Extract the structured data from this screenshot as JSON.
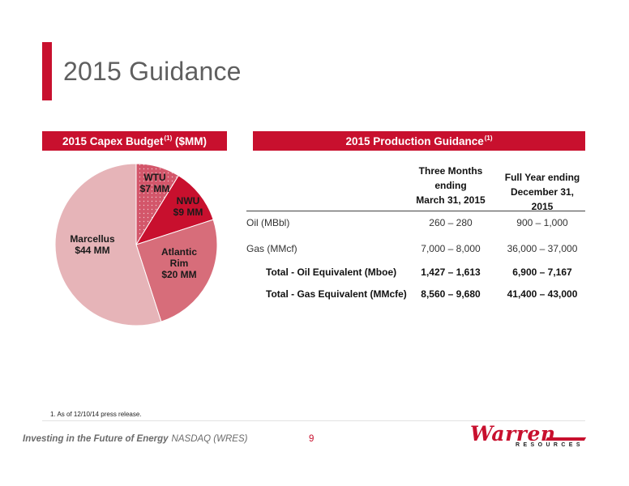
{
  "page": {
    "title": "2015 Guidance",
    "footnote": "1. As of 12/10/14 press release.",
    "tagline": "Investing in the Future of Energy",
    "ticker": "NASDAQ (WRES)",
    "page_number": "9",
    "logo_name": "Warren",
    "logo_sub": "RESOURCES"
  },
  "capex": {
    "header": "2015 Capex Budget",
    "header_sup": "(1)",
    "header_unit": "($MM)"
  },
  "production": {
    "header": "2015 Production Guidance",
    "header_sup": "(1)",
    "col1": [
      "Three Months",
      "ending",
      "March 31, 2015"
    ],
    "col2": [
      "Full Year ending",
      "December 31, 2015"
    ],
    "rows": [
      {
        "label": "Oil (MBbl)",
        "q1": "260 – 280",
        "fy": "900 – 1,000",
        "total": false
      },
      {
        "label": "Gas (MMcf)",
        "q1": "7,000 – 8,000",
        "fy": "36,000 – 37,000",
        "total": false
      },
      {
        "label": "Total - Oil Equivalent (Mboe)",
        "q1": "1,427 – 1,613",
        "fy": "6,900 – 7,167",
        "total": true
      },
      {
        "label": "Total - Gas Equivalent (MMcfe)",
        "q1": "8,560 – 9,680",
        "fy": "41,400 – 43,000",
        "total": true
      }
    ]
  },
  "colors": {
    "accent": "#c8102e",
    "wtu": "#d3566a",
    "nwu": "#c8102e",
    "atlantic": "#d76d7a",
    "marcellus": "#e6b4b8"
  },
  "chart_data": {
    "type": "pie",
    "unit": "$MM",
    "slices": [
      {
        "name": "WTU",
        "value": 7,
        "label": "$7 MM",
        "color": "#d3566a",
        "pattern": "dots"
      },
      {
        "name": "NWU",
        "value": 9,
        "label": "$9 MM",
        "color": "#c8102e"
      },
      {
        "name": "Atlantic Rim",
        "value": 20,
        "label": "$20 MM",
        "color": "#d76d7a"
      },
      {
        "name": "Marcellus",
        "value": 44,
        "label": "$44 MM",
        "color": "#e6b4b8"
      }
    ],
    "start": "12 o'clock",
    "direction": "clockwise"
  }
}
